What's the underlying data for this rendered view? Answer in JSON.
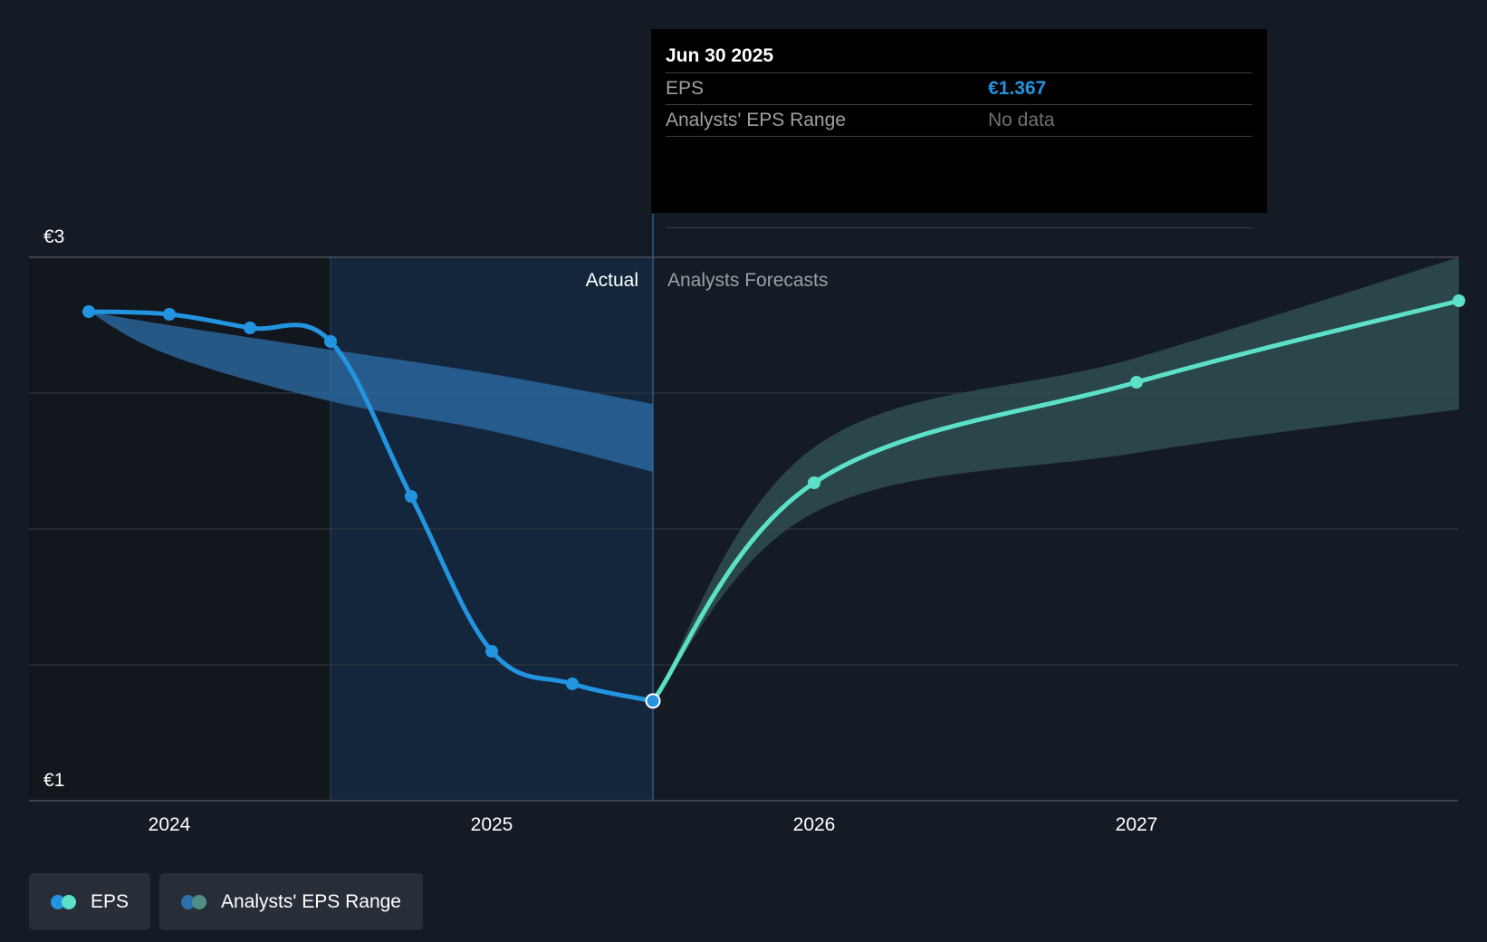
{
  "chart_data": {
    "type": "line",
    "x_ticks": [
      "2024",
      "2025",
      "2026",
      "2027"
    ],
    "y_ticks": [
      "€3",
      "€1"
    ],
    "ylim": [
      1,
      3
    ],
    "divider_labels": {
      "actual": "Actual",
      "forecast": "Analysts Forecasts"
    },
    "series": [
      {
        "name": "EPS",
        "segment": "actual",
        "color": "#2394df",
        "points": [
          {
            "x": 2023.75,
            "y": 2.8
          },
          {
            "x": 2024.0,
            "y": 2.79
          },
          {
            "x": 2024.25,
            "y": 2.74
          },
          {
            "x": 2024.5,
            "y": 2.69
          },
          {
            "x": 2024.75,
            "y": 2.12
          },
          {
            "x": 2025.0,
            "y": 1.55
          },
          {
            "x": 2025.25,
            "y": 1.43
          },
          {
            "x": 2025.5,
            "y": 1.367
          }
        ]
      },
      {
        "name": "EPS",
        "segment": "forecast",
        "color": "#5ce0c8",
        "points": [
          {
            "x": 2025.5,
            "y": 1.367
          },
          {
            "x": 2026.0,
            "y": 2.17
          },
          {
            "x": 2027.0,
            "y": 2.54
          },
          {
            "x": 2028.0,
            "y": 2.84
          }
        ]
      },
      {
        "name": "Analysts' EPS Range",
        "segment": "actual",
        "color": "#2d6fa8",
        "band": [
          {
            "x": 2023.75,
            "lo": 2.8,
            "hi": 2.8
          },
          {
            "x": 2024.0,
            "lo": 2.64,
            "hi": 2.75
          },
          {
            "x": 2024.5,
            "lo": 2.47,
            "hi": 2.66
          },
          {
            "x": 2025.0,
            "lo": 2.36,
            "hi": 2.57
          },
          {
            "x": 2025.5,
            "lo": 2.21,
            "hi": 2.46
          }
        ]
      },
      {
        "name": "Analysts' EPS Range",
        "segment": "forecast",
        "color": "#2e4b4d",
        "band": [
          {
            "x": 2025.5,
            "lo": 1.367,
            "hi": 1.367
          },
          {
            "x": 2026.0,
            "lo": 2.06,
            "hi": 2.3
          },
          {
            "x": 2027.0,
            "lo": 2.28,
            "hi": 2.63
          },
          {
            "x": 2028.0,
            "lo": 2.44,
            "hi": 3.0
          }
        ]
      }
    ],
    "highlight_x": 2025.5
  },
  "tooltip": {
    "date": "Jun 30 2025",
    "rows": [
      {
        "label": "EPS",
        "value": "€1.367"
      },
      {
        "label": "Analysts' EPS Range",
        "value": "No data"
      }
    ]
  },
  "legend": [
    {
      "label": "EPS",
      "colors": [
        "#2394df",
        "#5ce0c8"
      ]
    },
    {
      "label": "Analysts' EPS Range",
      "colors": [
        "#2d6fa8",
        "#4f8f85"
      ]
    }
  ]
}
